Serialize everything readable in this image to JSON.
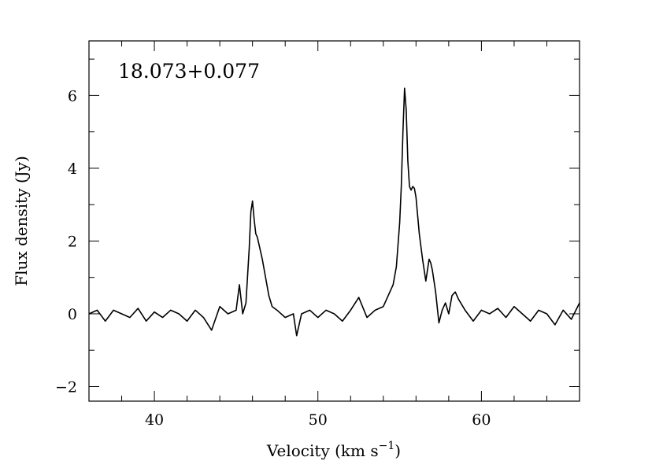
{
  "chart_data": {
    "type": "line",
    "title": "",
    "annotation": "18.073+0.077",
    "xlabel": "Velocity (km s",
    "xlabel_sup": "−1",
    "xlabel_close": ")",
    "ylabel": "Flux density (Jy)",
    "xlim": [
      36,
      66
    ],
    "ylim": [
      -2.4,
      7.5
    ],
    "x_ticks": [
      40,
      50,
      60
    ],
    "x_tick_labels": [
      "40",
      "50",
      "60"
    ],
    "x_minor_step": 2,
    "y_ticks": [
      -2,
      0,
      2,
      4,
      6
    ],
    "y_tick_labels": [
      "−2",
      "0",
      "2",
      "4",
      "6"
    ],
    "y_minor_step": 1,
    "grid": false,
    "series": [
      {
        "color": "#000000",
        "x": [
          36.0,
          36.5,
          37.0,
          37.5,
          38.0,
          38.5,
          39.0,
          39.5,
          40.0,
          40.5,
          41.0,
          41.5,
          42.0,
          42.5,
          43.0,
          43.5,
          44.0,
          44.5,
          45.0,
          45.2,
          45.4,
          45.6,
          45.8,
          45.9,
          46.0,
          46.1,
          46.2,
          46.3,
          46.4,
          46.6,
          46.8,
          47.0,
          47.2,
          47.5,
          48.0,
          48.5,
          48.7,
          49.0,
          49.5,
          50.0,
          50.5,
          51.0,
          51.5,
          52.0,
          52.5,
          53.0,
          53.5,
          54.0,
          54.3,
          54.6,
          54.8,
          55.0,
          55.1,
          55.2,
          55.3,
          55.4,
          55.5,
          55.6,
          55.7,
          55.8,
          55.9,
          56.0,
          56.2,
          56.4,
          56.6,
          56.8,
          56.9,
          57.0,
          57.2,
          57.4,
          57.6,
          57.8,
          58.0,
          58.2,
          58.4,
          58.6,
          59.0,
          59.5,
          60.0,
          60.5,
          61.0,
          61.5,
          62.0,
          62.5,
          63.0,
          63.5,
          64.0,
          64.5,
          65.0,
          65.5,
          66.0
        ],
        "y": [
          0.0,
          0.1,
          -0.2,
          0.1,
          0.0,
          -0.1,
          0.15,
          -0.2,
          0.05,
          -0.1,
          0.1,
          0.0,
          -0.2,
          0.1,
          -0.1,
          -0.45,
          0.2,
          0.0,
          0.1,
          0.8,
          0.0,
          0.3,
          1.8,
          2.8,
          3.1,
          2.6,
          2.2,
          2.1,
          1.9,
          1.5,
          1.0,
          0.5,
          0.2,
          0.1,
          -0.1,
          0.0,
          -0.6,
          0.0,
          0.1,
          -0.1,
          0.1,
          0.0,
          -0.2,
          0.1,
          0.45,
          -0.1,
          0.1,
          0.2,
          0.5,
          0.8,
          1.3,
          2.5,
          3.5,
          5.0,
          6.2,
          5.6,
          4.2,
          3.5,
          3.4,
          3.5,
          3.45,
          3.2,
          2.2,
          1.5,
          0.9,
          1.5,
          1.4,
          1.2,
          0.6,
          -0.25,
          0.1,
          0.3,
          0.0,
          0.5,
          0.6,
          0.4,
          0.1,
          -0.2,
          0.1,
          0.0,
          0.15,
          -0.1,
          0.2,
          0.0,
          -0.2,
          0.1,
          0.0,
          -0.3,
          0.1,
          -0.15,
          0.3
        ]
      }
    ]
  }
}
